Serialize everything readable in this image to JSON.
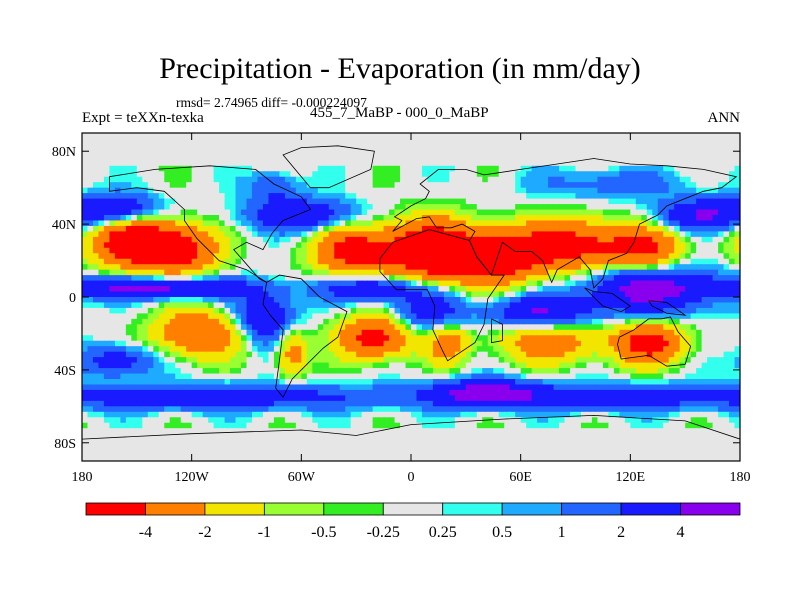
{
  "title": "Precipitation - Evaporation (in mm/day)",
  "stats": "rmsd= 2.74965 diff= -0.000224097",
  "experiment": "Expt = teXXn-texka",
  "case": "455_7_MaBP - 000_0_MaBP",
  "season": "ANN",
  "map": {
    "lon_range": [
      -180,
      180
    ],
    "lat_range": [
      -90,
      90
    ],
    "x_ticks": [
      {
        "value": -180,
        "label": "180"
      },
      {
        "value": -120,
        "label": "120W"
      },
      {
        "value": -60,
        "label": "60W"
      },
      {
        "value": 0,
        "label": "0"
      },
      {
        "value": 60,
        "label": "60E"
      },
      {
        "value": 120,
        "label": "120E"
      },
      {
        "value": 180,
        "label": "180"
      }
    ],
    "y_ticks": [
      {
        "value": 80,
        "label": "80N"
      },
      {
        "value": 40,
        "label": "40N"
      },
      {
        "value": 0,
        "label": "0"
      },
      {
        "value": -40,
        "label": "40S"
      },
      {
        "value": -80,
        "label": "80S"
      }
    ],
    "levels": [
      -4,
      -2,
      -1,
      -0.5,
      -0.25,
      0.25,
      0.5,
      1,
      2,
      4
    ],
    "colors": [
      "#ff0000",
      "#ff7f00",
      "#f2e600",
      "#99ff33",
      "#33ee22",
      "#e6e6e6",
      "#33ffee",
      "#1eaaff",
      "#2266ff",
      "#1a1aff",
      "#8800ee"
    ],
    "colorbar_labels": [
      "-4",
      "-2",
      "-1",
      "-0.5",
      "-0.25",
      "0.25",
      "0.5",
      "1",
      "2",
      "4"
    ]
  }
}
